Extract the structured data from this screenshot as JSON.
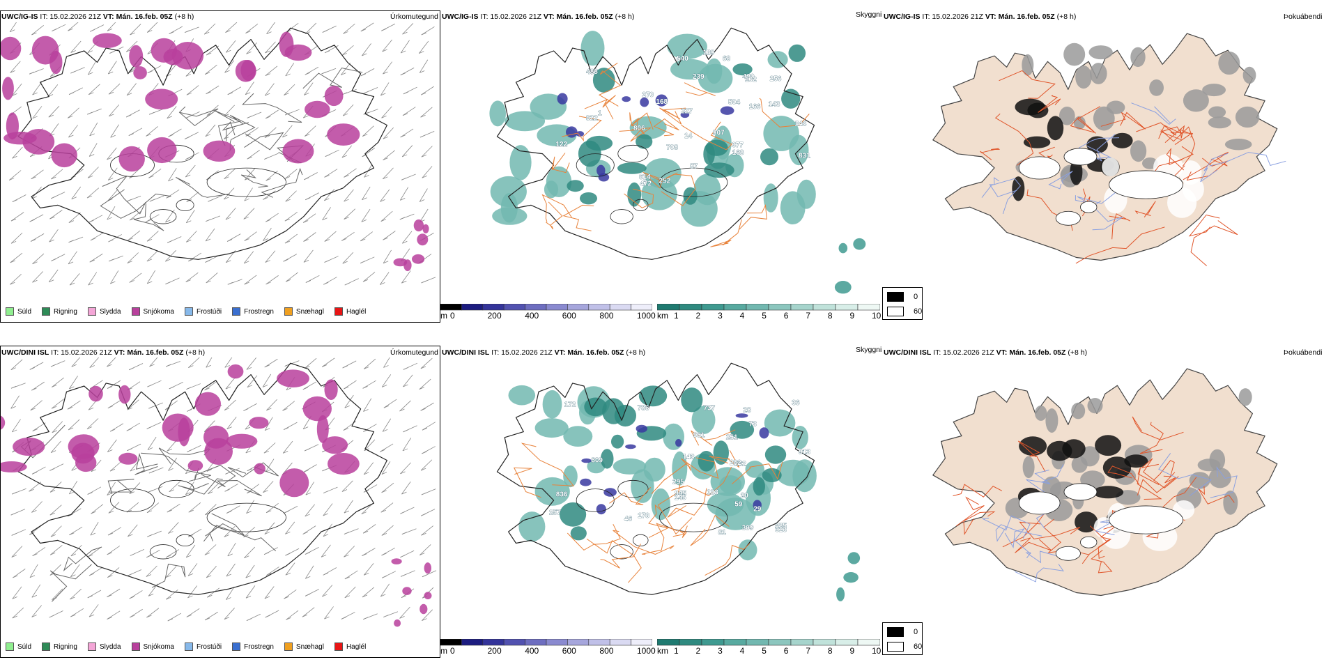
{
  "rows": [
    {
      "model": "UWC/IG-IS",
      "init": " IT: 15.02.2026 21Z ",
      "vt_label": "VT:",
      "vt_value": " Mán. 16.feb. 05Z",
      "lead": " (+8 h)",
      "panel_titles": {
        "precip": "Úrkomutegund",
        "cloud": "Skyggni",
        "fog": "Þokuábendi"
      },
      "ceiling_labels": [
        "806",
        "922",
        "256",
        "189",
        "239",
        "708",
        "907",
        "143",
        "377",
        "166",
        "270",
        "243",
        "472",
        "168",
        "14",
        "504",
        "614",
        "490",
        "488",
        "540",
        "831",
        "122",
        "1",
        "227",
        "68",
        "102",
        "168",
        "252",
        "87"
      ]
    },
    {
      "model": "UWC/DINI ISL",
      "init": " IT: 15.02.2026 21Z ",
      "vt_label": "VT:",
      "vt_value": " Mán. 16.feb. 05Z",
      "lead": " (+8 h)",
      "panel_titles": {
        "precip": "Úrkomutegund",
        "cloud": "Skyggni",
        "fog": "Þokuábendi"
      },
      "ceiling_labels": [
        "737",
        "945",
        "29",
        "28",
        "786",
        "262",
        "178",
        "20",
        "913",
        "202",
        "836",
        "485",
        "609",
        "143",
        "73",
        "172",
        "961",
        "257",
        "59",
        "295",
        "323",
        "145",
        "133",
        "309",
        "251",
        "46",
        "36",
        "81"
      ]
    }
  ],
  "precip_legend": [
    {
      "label": "Súld",
      "color": "#90ee90"
    },
    {
      "label": "Rigning",
      "color": "#2e8b57"
    },
    {
      "label": "Slydda",
      "color": "#f4a6d7"
    },
    {
      "label": "Snjókoma",
      "color": "#b8409c"
    },
    {
      "label": "Frostúði",
      "color": "#87b9ea"
    },
    {
      "label": "Frostregn",
      "color": "#3a6fd0"
    },
    {
      "label": "Snæhagl",
      "color": "#f0a020"
    },
    {
      "label": "Haglél",
      "color": "#e81515"
    }
  ],
  "ceiling_bar": {
    "unit": "m",
    "ticks": [
      "0",
      "200",
      "400",
      "600",
      "800",
      "1000"
    ],
    "colors": [
      "#000000",
      "#1c1c80",
      "#34349a",
      "#5252b0",
      "#6e6ec0",
      "#8a8ad0",
      "#a6a6dc",
      "#c0c0e8",
      "#dadaf2",
      "#eeeefa"
    ]
  },
  "visibility_bar": {
    "unit": "km",
    "ticks": [
      "1",
      "2",
      "3",
      "4",
      "5",
      "6",
      "7",
      "8",
      "9",
      "10"
    ],
    "colors": [
      "#1f7a70",
      "#2f8a80",
      "#3f9a90",
      "#58aaa0",
      "#72b8b0",
      "#8cc6be",
      "#a6d4cc",
      "#c0e2da",
      "#d8eee8",
      "#eef8f4"
    ]
  },
  "fog_legend": [
    {
      "label": "0",
      "color": "#000000"
    },
    {
      "label": "60",
      "color": "#ffffff"
    }
  ]
}
